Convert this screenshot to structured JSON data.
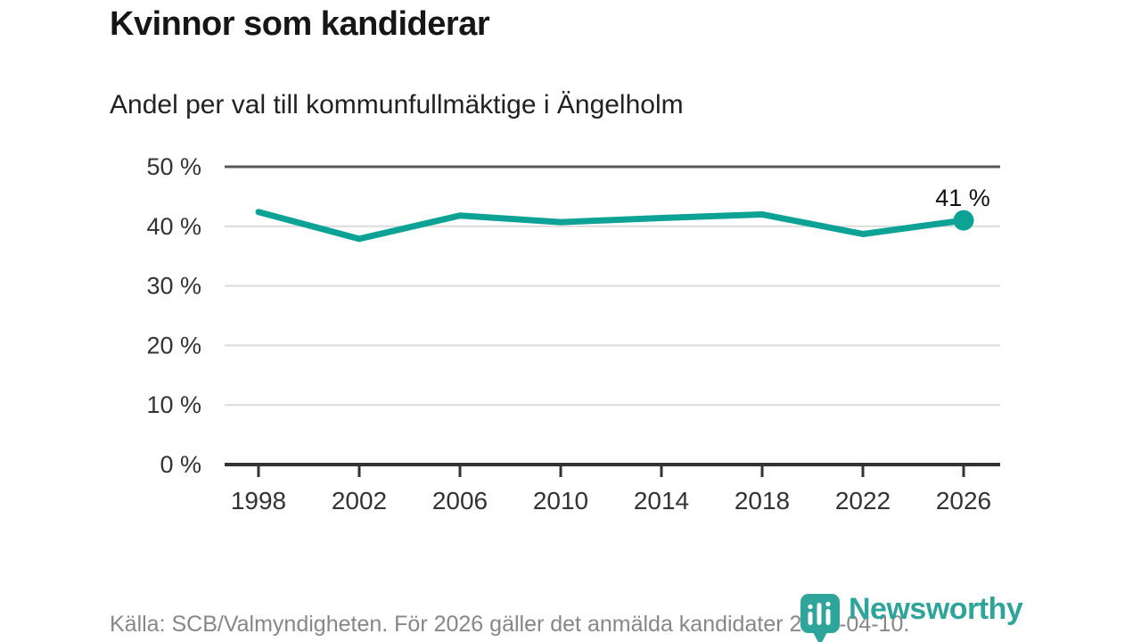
{
  "header": {
    "title": "Kvinnor som kandiderar",
    "subtitle": "Andel per val till kommunfullmäktige i Ängelholm"
  },
  "chart_data": {
    "type": "line",
    "categories": [
      "1998",
      "2002",
      "2006",
      "2010",
      "2014",
      "2018",
      "2022",
      "2026"
    ],
    "values": [
      42.4,
      37.9,
      41.8,
      40.7,
      41.4,
      42.0,
      38.7,
      41.0
    ],
    "unit": "%",
    "ylim": [
      0,
      50
    ],
    "yticks": [
      {
        "value": 0,
        "label": "0 %"
      },
      {
        "value": 10,
        "label": "10 %"
      },
      {
        "value": 20,
        "label": "20 %"
      },
      {
        "value": 30,
        "label": "30 %"
      },
      {
        "value": 40,
        "label": "40 %"
      },
      {
        "value": 50,
        "label": "50 %"
      }
    ],
    "end_label": "41 %",
    "grid_on": true,
    "legend": "none"
  },
  "footer": {
    "source": "Källa: SCB/Valmyndigheten. För 2026 gäller det anmälda kandidater 2026-04-10."
  },
  "branding": {
    "logo_text": "Newsworthy"
  },
  "colors": {
    "line": "#0da296",
    "grid_light": "#dcdcdc",
    "grid_top": "#595959",
    "axis": "#333333",
    "tick_text": "#333333",
    "annotation_text": "#111111",
    "logo": "#2fa49a"
  }
}
